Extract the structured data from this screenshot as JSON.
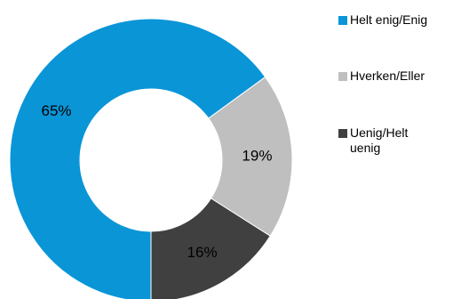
{
  "chart_data": {
    "type": "pie",
    "style": "donut",
    "categories": [
      "Helt enig/Enig",
      "Hverken/Eller",
      "Uenig/Helt uenig"
    ],
    "values": [
      65,
      19,
      16
    ],
    "data_labels": [
      "65%",
      "19%",
      "16%"
    ],
    "colors": [
      "#0a95d7",
      "#bfbfbf",
      "#404040"
    ],
    "title": "",
    "legend": {
      "position": "right",
      "items": [
        {
          "label": "Helt enig/Enig",
          "color": "#0a95d7"
        },
        {
          "label": "Hverken/Eller",
          "color": "#bfbfbf"
        },
        {
          "label": "Uenig/Helt\nuenig",
          "color": "#404040"
        }
      ]
    }
  }
}
